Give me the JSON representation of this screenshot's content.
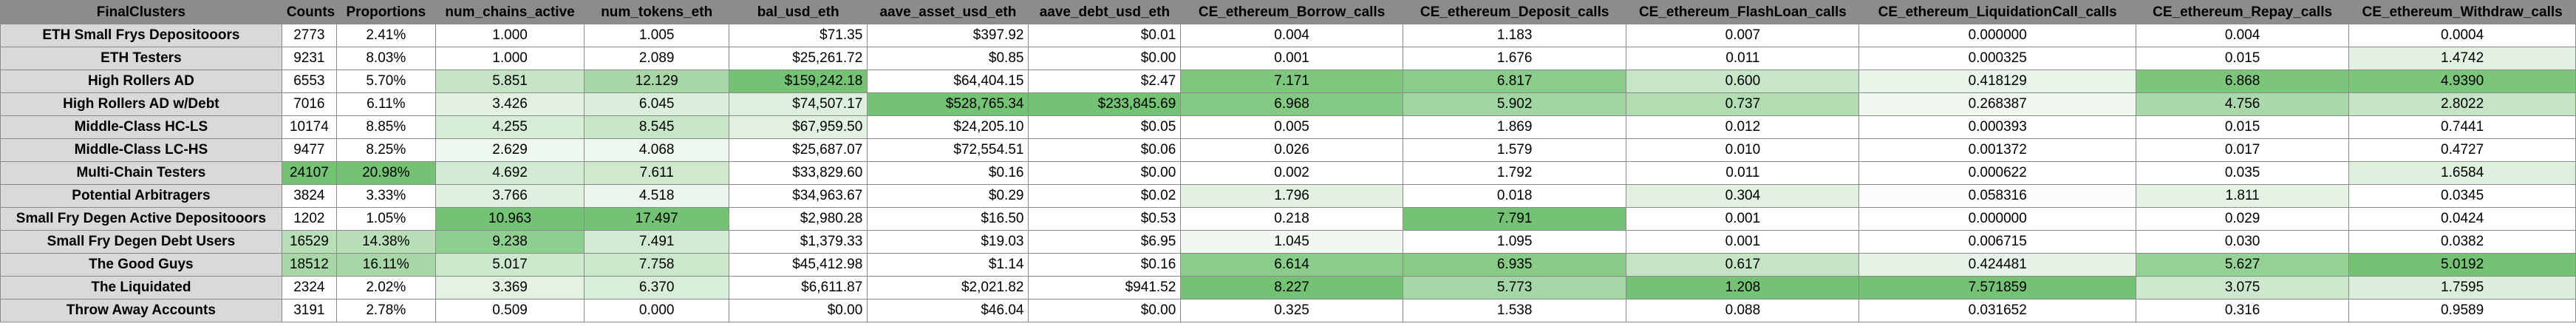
{
  "table": {
    "columns": [
      "FinalClusters",
      "Counts",
      "Proportions",
      "num_chains_active",
      "num_tokens_eth",
      "bal_usd_eth",
      "aave_asset_usd_eth",
      "aave_debt_usd_eth",
      "CE_ethereum_Borrow_calls",
      "CE_ethereum_Deposit_calls",
      "CE_ethereum_FlashLoan_calls",
      "CE_ethereum_LiquidationCall_calls",
      "CE_ethereum_Repay_calls",
      "CE_ethereum_Withdraw_calls"
    ],
    "rows": [
      {
        "cells": [
          "ETH Small Frys Depositooors",
          "2773",
          "2.41%",
          "1.000",
          "1.005",
          "$71.35",
          "$397.92",
          "$0.01",
          "0.004",
          "1.183",
          "0.007",
          "0.000000",
          "0.004",
          "0.0004"
        ],
        "fills": [
          "#d9d9d9",
          "#ffffff",
          "#ffffff",
          "#ffffff",
          "#ffffff",
          "#ffffff",
          "#ffffff",
          "#ffffff",
          "#ffffff",
          "#ffffff",
          "#ffffff",
          "#ffffff",
          "#ffffff",
          "#ffffff"
        ]
      },
      {
        "cells": [
          "ETH Testers",
          "9231",
          "8.03%",
          "1.000",
          "2.089",
          "$25,261.72",
          "$0.85",
          "$0.00",
          "0.001",
          "1.676",
          "0.011",
          "0.000325",
          "0.015",
          "1.4742"
        ],
        "fills": [
          "#d9d9d9",
          "#ffffff",
          "#ffffff",
          "#ffffff",
          "#ffffff",
          "#ffffff",
          "#ffffff",
          "#ffffff",
          "#ffffff",
          "#ffffff",
          "#ffffff",
          "#ffffff",
          "#ffffff",
          "#e2f1e2"
        ]
      },
      {
        "cells": [
          "High Rollers AD",
          "6553",
          "5.70%",
          "5.851",
          "12.129",
          "$159,242.18",
          "$64,404.15",
          "$2.47",
          "7.171",
          "6.817",
          "0.600",
          "0.418129",
          "6.868",
          "4.9390"
        ],
        "fills": [
          "#d9d9d9",
          "#ffffff",
          "#ffffff",
          "#c5e4c5",
          "#a7d7a7",
          "#74c274",
          "#ffffff",
          "#ffffff",
          "#7fc77f",
          "#8acc8a",
          "#c7e6c7",
          "#e8f4e8",
          "#7bc67b",
          "#7bc67b"
        ]
      },
      {
        "cells": [
          "High Rollers AD w/Debt",
          "7016",
          "6.11%",
          "3.426",
          "6.045",
          "$74,507.17",
          "$528,765.34",
          "$233,845.69",
          "6.968",
          "5.902",
          "0.737",
          "0.268387",
          "4.756",
          "2.8022"
        ],
        "fills": [
          "#d9d9d9",
          "#ffffff",
          "#ffffff",
          "#e2f1e2",
          "#dcefdc",
          "#ddefdd",
          "#74c274",
          "#74c274",
          "#83c983",
          "#a1d5a1",
          "#b2dcb2",
          "#f0f8f0",
          "#aad8aa",
          "#c5e4c5"
        ]
      },
      {
        "cells": [
          "Middle-Class HC-LS",
          "10174",
          "8.85%",
          "4.255",
          "8.545",
          "$67,959.50",
          "$24,205.10",
          "$0.05",
          "0.005",
          "1.869",
          "0.012",
          "0.000393",
          "0.015",
          "0.7441"
        ],
        "fills": [
          "#d9d9d9",
          "#ffffff",
          "#ffffff",
          "#d6ecd6",
          "#c7e6c7",
          "#e2f1e2",
          "#ffffff",
          "#ffffff",
          "#ffffff",
          "#ffffff",
          "#ffffff",
          "#ffffff",
          "#ffffff",
          "#ffffff"
        ]
      },
      {
        "cells": [
          "Middle-Class LC-HS",
          "9477",
          "8.25%",
          "2.629",
          "4.068",
          "$25,687.07",
          "$72,554.51",
          "$0.06",
          "0.026",
          "1.579",
          "0.010",
          "0.001372",
          "0.017",
          "0.4727"
        ],
        "fills": [
          "#d9d9d9",
          "#ffffff",
          "#ffffff",
          "#eff8ef",
          "#edf7ed",
          "#ffffff",
          "#ffffff",
          "#ffffff",
          "#ffffff",
          "#ffffff",
          "#ffffff",
          "#ffffff",
          "#ffffff",
          "#ffffff"
        ]
      },
      {
        "cells": [
          "Multi-Chain Testers",
          "24107",
          "20.98%",
          "4.692",
          "7.611",
          "$33,829.60",
          "$0.16",
          "$0.00",
          "0.002",
          "1.792",
          "0.011",
          "0.000622",
          "0.035",
          "1.6584"
        ],
        "fills": [
          "#d9d9d9",
          "#74c274",
          "#74c274",
          "#d1ead1",
          "#cfe9cf",
          "#ffffff",
          "#ffffff",
          "#ffffff",
          "#ffffff",
          "#ffffff",
          "#ffffff",
          "#ffffff",
          "#ffffff",
          "#dff0df"
        ]
      },
      {
        "cells": [
          "Potential Arbitragers",
          "3824",
          "3.33%",
          "3.766",
          "4.518",
          "$34,963.67",
          "$0.29",
          "$0.02",
          "1.796",
          "0.018",
          "0.304",
          "0.058316",
          "1.811",
          "0.0345"
        ],
        "fills": [
          "#d9d9d9",
          "#ffffff",
          "#ffffff",
          "#dff0df",
          "#ebf5eb",
          "#ffffff",
          "#ffffff",
          "#ffffff",
          "#e2f1e2",
          "#ffffff",
          "#e2f1e2",
          "#fbfdfb",
          "#e5f3e5",
          "#ffffff"
        ]
      },
      {
        "cells": [
          "Small Fry Degen Active Depositooors",
          "1202",
          "1.05%",
          "10.963",
          "17.497",
          "$2,980.28",
          "$16.50",
          "$0.53",
          "0.218",
          "7.791",
          "0.001",
          "0.000000",
          "0.029",
          "0.0424"
        ],
        "fills": [
          "#d9d9d9",
          "#ffffff",
          "#ffffff",
          "#74c274",
          "#74c274",
          "#ffffff",
          "#ffffff",
          "#ffffff",
          "#ffffff",
          "#74c274",
          "#ffffff",
          "#ffffff",
          "#ffffff",
          "#ffffff"
        ]
      },
      {
        "cells": [
          "Small Fry Degen Debt Users",
          "16529",
          "14.38%",
          "9.238",
          "7.491",
          "$1,379.33",
          "$19.03",
          "$6.95",
          "1.045",
          "1.095",
          "0.001",
          "0.006715",
          "0.030",
          "0.0382"
        ],
        "fills": [
          "#d9d9d9",
          "#b9dfb9",
          "#b9dfb9",
          "#8fcf8f",
          "#d1ead1",
          "#ffffff",
          "#ffffff",
          "#ffffff",
          "#f0f8f0",
          "#ffffff",
          "#ffffff",
          "#ffffff",
          "#ffffff",
          "#ffffff"
        ]
      },
      {
        "cells": [
          "The Good Guys",
          "18512",
          "16.11%",
          "5.017",
          "7.758",
          "$45,412.98",
          "$1.14",
          "$0.16",
          "6.614",
          "6.935",
          "0.617",
          "0.424481",
          "5.627",
          "5.0192"
        ],
        "fills": [
          "#d9d9d9",
          "#a7d7a7",
          "#a7d7a7",
          "#cde9cd",
          "#cce8cc",
          "#ffffff",
          "#ffffff",
          "#ffffff",
          "#8acc8a",
          "#87cb87",
          "#c5e4c5",
          "#e6f3e6",
          "#94d194",
          "#74c274"
        ]
      },
      {
        "cells": [
          "The Liquidated",
          "2324",
          "2.02%",
          "3.369",
          "6.370",
          "$6,611.87",
          "$2,021.82",
          "$941.52",
          "8.227",
          "5.773",
          "1.208",
          "7.571859",
          "3.075",
          "1.7595"
        ],
        "fills": [
          "#d9d9d9",
          "#ffffff",
          "#ffffff",
          "#e4f2e4",
          "#d9eed9",
          "#ffffff",
          "#ffffff",
          "#ffffff",
          "#74c274",
          "#a5d6a5",
          "#74c274",
          "#74c274",
          "#cde9cd",
          "#dcefdc"
        ]
      },
      {
        "cells": [
          "Throw Away Accounts",
          "3191",
          "2.78%",
          "0.509",
          "0.000",
          "$0.00",
          "$46.04",
          "$0.00",
          "0.325",
          "1.538",
          "0.088",
          "0.031652",
          "0.316",
          "0.9589"
        ],
        "fills": [
          "#d9d9d9",
          "#ffffff",
          "#ffffff",
          "#ffffff",
          "#ffffff",
          "#ffffff",
          "#ffffff",
          "#ffffff",
          "#ffffff",
          "#ffffff",
          "#ffffff",
          "#ffffff",
          "#ffffff",
          "#ffffff"
        ]
      }
    ]
  }
}
